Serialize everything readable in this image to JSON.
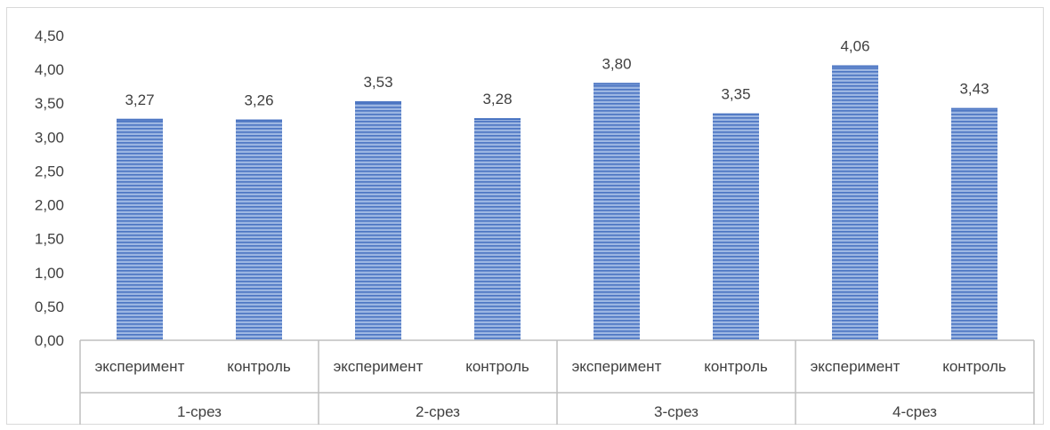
{
  "chart_data": {
    "type": "bar",
    "title": "",
    "xlabel": "",
    "ylabel": "",
    "ylim": [
      0,
      4.5
    ],
    "ytick_step": 0.5,
    "yticks": [
      "0,00",
      "0,50",
      "1,00",
      "1,50",
      "2,00",
      "2,50",
      "3,00",
      "3,50",
      "4,00",
      "4,50"
    ],
    "grid": false,
    "legend": "none",
    "groups": [
      {
        "label": "1-срез",
        "bars": [
          {
            "category": "эксперимент",
            "value": 3.27,
            "label": "3,27"
          },
          {
            "category": "контроль",
            "value": 3.26,
            "label": "3,26"
          }
        ]
      },
      {
        "label": "2-срез",
        "bars": [
          {
            "category": "эксперимент",
            "value": 3.53,
            "label": "3,53"
          },
          {
            "category": "контроль",
            "value": 3.28,
            "label": "3,28"
          }
        ]
      },
      {
        "label": "3-срез",
        "bars": [
          {
            "category": "эксперимент",
            "value": 3.8,
            "label": "3,80"
          },
          {
            "category": "контроль",
            "value": 3.35,
            "label": "3,35"
          }
        ]
      },
      {
        "label": "4-срез",
        "bars": [
          {
            "category": "эксперимент",
            "value": 4.06,
            "label": "4,06"
          },
          {
            "category": "контроль",
            "value": 3.43,
            "label": "3,43"
          }
        ]
      }
    ],
    "colors": {
      "bar_light": "#9cb6e2",
      "bar_dark": "#4a74c2",
      "axis": "#bfbfbf",
      "text": "#404040"
    }
  }
}
